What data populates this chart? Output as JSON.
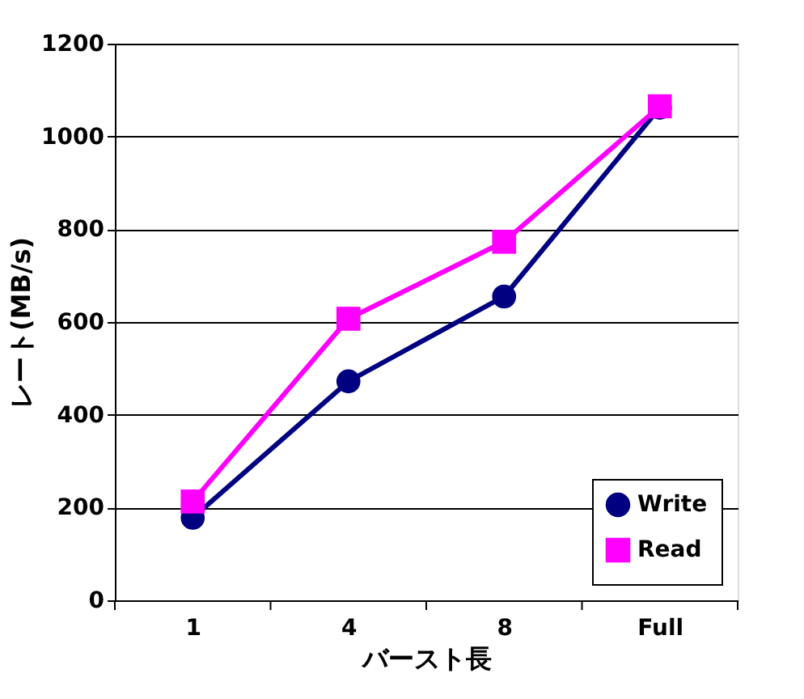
{
  "chart_data": {
    "type": "line",
    "xlabel": "バースト長",
    "ylabel": "レート(MB/s)",
    "categories": [
      "1",
      "4",
      "8",
      "Full"
    ],
    "series": [
      {
        "name": "Write",
        "color": "#000080",
        "values": [
          178,
          472,
          655,
          1062
        ],
        "marker": "circle"
      },
      {
        "name": "Read",
        "color": "#ff00ff",
        "values": [
          213,
          607,
          773,
          1065
        ],
        "marker": "square"
      }
    ],
    "ylim": [
      0,
      1200
    ],
    "yticks": [
      0,
      200,
      400,
      600,
      800,
      1000,
      1200
    ],
    "grid": "y",
    "legend": "bottom right",
    "line_style": "solid"
  }
}
